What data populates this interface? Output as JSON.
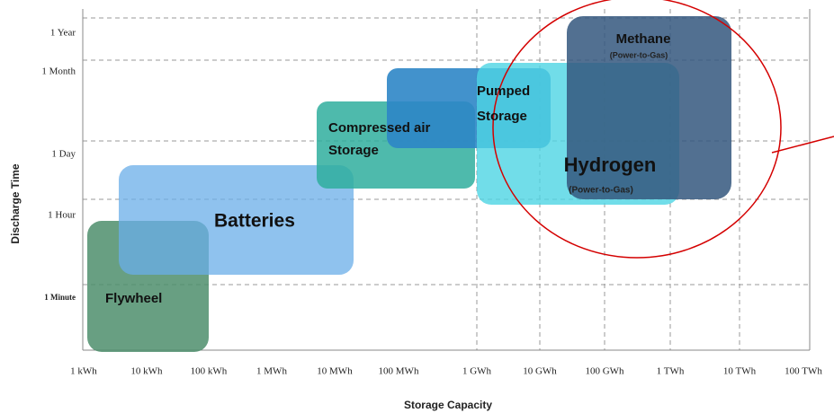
{
  "axes": {
    "x_title": "Storage Capacity",
    "y_title": "Discharge Time",
    "x_ticks": [
      "1 kWh",
      "10 kWh",
      "100 kWh",
      "1 MWh",
      "10 MWh",
      "100 MWh",
      "1 GWh",
      "10 GWh",
      "100 GWh",
      "1 TWh",
      "10 TWh",
      "100 TWh"
    ],
    "y_ticks": [
      "1 Year",
      "1 Month",
      "1 Day",
      "1 Hour",
      "1 Minute"
    ]
  },
  "regions": [
    {
      "label": "Flywheel"
    },
    {
      "label": "Batteries"
    },
    {
      "label": [
        "Compressed air",
        "Storage"
      ]
    },
    {
      "label": [
        "Pumped",
        "Storage"
      ]
    },
    {
      "label": "Hydrogen",
      "sublabel": "(Power-to-Gas)"
    },
    {
      "label": "Methane",
      "sublabel": "(Power-to-Gas)"
    }
  ]
}
